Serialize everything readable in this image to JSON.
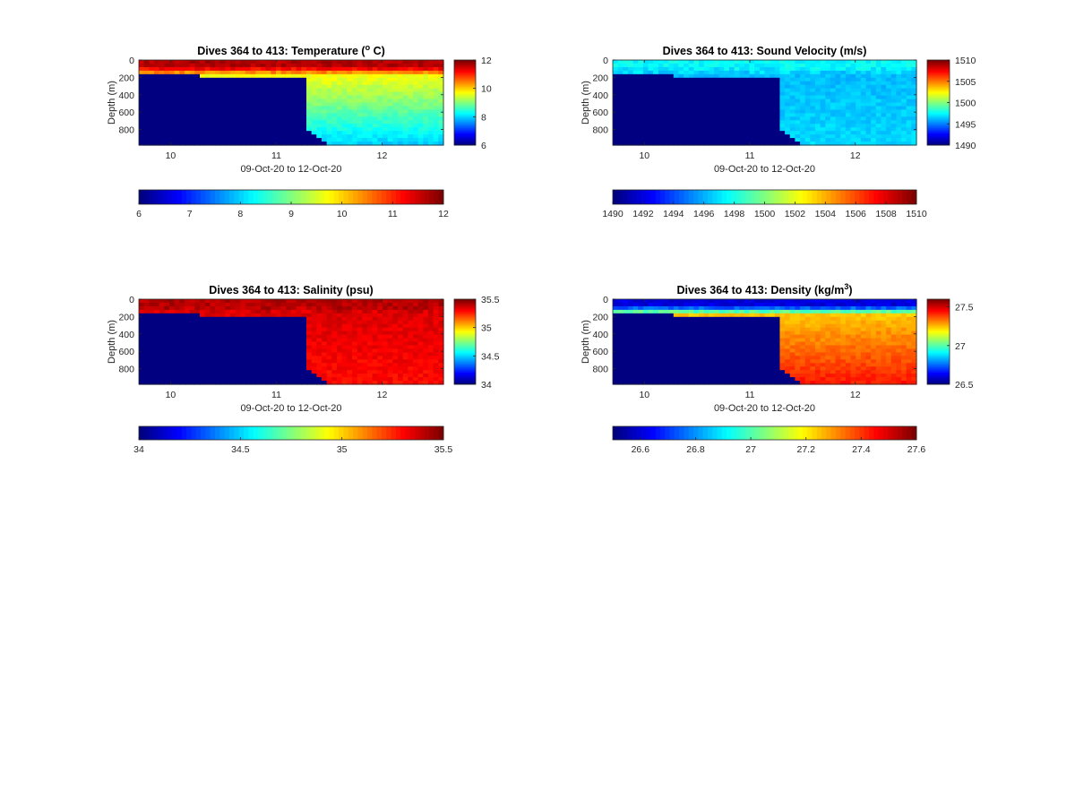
{
  "figure": {
    "background": "#ffffff",
    "colormap": "jet"
  },
  "chart_data": [
    {
      "id": "temperature",
      "type": "heatmap",
      "title_main": "Dives 364 to 413: Temperature (",
      "title_sup": "o",
      "title_end": " C)",
      "ylabel": "Depth (m)",
      "xlabel": "09-Oct-20 to 12-Oct-20",
      "xlim": [
        9.7,
        12.58
      ],
      "ylim": [
        0,
        980
      ],
      "y_reversed": true,
      "x_ticks": [
        "10",
        "11",
        "12"
      ],
      "y_ticks": [
        "0",
        "200",
        "400",
        "600",
        "800"
      ],
      "clim": [
        6,
        12
      ],
      "colorbar_ticks": [
        "6",
        "8",
        "10",
        "12"
      ],
      "hcolorbar_ticks": [
        "6",
        "7",
        "8",
        "9",
        "10",
        "11",
        "12"
      ],
      "missing_value": 6,
      "surface_value": 11.7,
      "deep_value": 9.7,
      "deep_end_value": 7.9
    },
    {
      "id": "sound-velocity",
      "type": "heatmap",
      "title_main": "Dives 364 to 413: Sound Velocity (m/s)",
      "title_sup": "",
      "title_end": "",
      "ylabel": "Depth (m)",
      "xlabel": "09-Oct-20 to 12-Oct-20",
      "xlim": [
        9.7,
        12.58
      ],
      "ylim": [
        0,
        980
      ],
      "y_reversed": true,
      "x_ticks": [
        "10",
        "11",
        "12"
      ],
      "y_ticks": [
        "0",
        "200",
        "400",
        "600",
        "800"
      ],
      "clim": [
        1490,
        1510
      ],
      "colorbar_ticks": [
        "1490",
        "1495",
        "1500",
        "1505",
        "1510"
      ],
      "hcolorbar_ticks": [
        "1490",
        "1492",
        "1494",
        "1496",
        "1498",
        "1500",
        "1502",
        "1504",
        "1506",
        "1508",
        "1510"
      ],
      "missing_value": 1490,
      "surface_value": 1497.5,
      "deep_value": 1496.2,
      "deep_end_value": 1496.8
    },
    {
      "id": "salinity",
      "type": "heatmap",
      "title_main": "Dives 364 to 413: Salinity (psu)",
      "title_sup": "",
      "title_end": "",
      "ylabel": "Depth (m)",
      "xlabel": "09-Oct-20 to 12-Oct-20",
      "xlim": [
        9.7,
        12.58
      ],
      "ylim": [
        0,
        980
      ],
      "y_reversed": true,
      "x_ticks": [
        "10",
        "11",
        "12"
      ],
      "y_ticks": [
        "0",
        "200",
        "400",
        "600",
        "800"
      ],
      "clim": [
        34,
        35.5
      ],
      "colorbar_ticks": [
        "34",
        "34.5",
        "35",
        "35.5"
      ],
      "hcolorbar_ticks": [
        "34",
        "34.5",
        "35",
        "35.5"
      ],
      "missing_value": 34,
      "surface_value": 35.42,
      "deep_value": 35.36,
      "deep_end_value": 35.3
    },
    {
      "id": "density",
      "type": "heatmap",
      "title_main": "Dives 364 to 413: Density (kg/m",
      "title_sup": "3",
      "title_end": ")",
      "ylabel": "Depth (m)",
      "xlabel": "09-Oct-20 to 12-Oct-20",
      "xlim": [
        9.7,
        12.58
      ],
      "ylim": [
        0,
        980
      ],
      "y_reversed": true,
      "x_ticks": [
        "10",
        "11",
        "12"
      ],
      "y_ticks": [
        "0",
        "200",
        "400",
        "600",
        "800"
      ],
      "clim": [
        26.5,
        27.6
      ],
      "colorbar_ticks": [
        "26.5",
        "27",
        "27.5"
      ],
      "hcolorbar_ticks": [
        "26.6",
        "26.8",
        "27",
        "27.2",
        "27.4",
        "27.6"
      ],
      "missing_value": 26.5,
      "surface_value": 26.6,
      "deep_value": 27.25,
      "deep_end_value": 27.45
    }
  ]
}
